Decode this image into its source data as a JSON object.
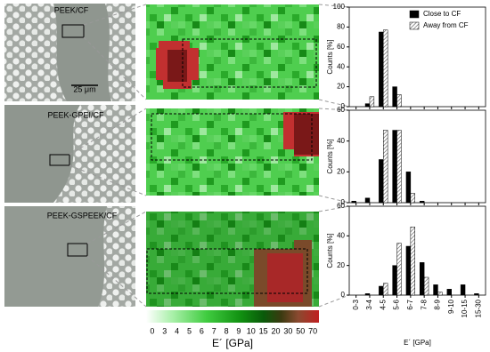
{
  "micrographs": [
    {
      "label": "PEEK/CF"
    },
    {
      "label": "PEEK-GPEI/CF"
    },
    {
      "label": "PEEK-GSPEEK/CF"
    }
  ],
  "scale_bar": "25 μm",
  "colorbar": {
    "ticks": [
      "0",
      "3",
      "4",
      "5",
      "6",
      "7",
      "8",
      "9",
      "10",
      "15",
      "20",
      "30",
      "50",
      "70"
    ],
    "label": "E´ [GPa]"
  },
  "chart_data": [
    {
      "type": "bar",
      "ylabel": "Counts [%]",
      "legend": "upper right",
      "categories": [
        null,
        null,
        null,
        null,
        null,
        null,
        null,
        null,
        null,
        null
      ],
      "series": [
        {
          "name": "Close to CF",
          "color": "#000000",
          "values": [
            0,
            3,
            75,
            20,
            0,
            0,
            0,
            0,
            0,
            0
          ]
        },
        {
          "name": "Away from CF",
          "color": "#ffffff",
          "hatch": true,
          "values": [
            0,
            10,
            77,
            12,
            0,
            0,
            0,
            0,
            0,
            0
          ]
        }
      ],
      "ylim": [
        0,
        100
      ],
      "yticks": [
        0,
        20,
        40,
        60,
        80,
        100
      ]
    },
    {
      "type": "bar",
      "ylabel": "Counts [%]",
      "categories": [
        null,
        null,
        null,
        null,
        null,
        null,
        null,
        null,
        null,
        null
      ],
      "series": [
        {
          "color": "#000000",
          "values": [
            1,
            3,
            28,
            47,
            20,
            1,
            0,
            0,
            0,
            0
          ]
        },
        {
          "color": "#ffffff",
          "hatch": true,
          "values": [
            0,
            0,
            47,
            47,
            6,
            0,
            0,
            0,
            0,
            0
          ]
        }
      ],
      "ylim": [
        0,
        60
      ],
      "yticks": [
        0,
        20,
        40,
        60
      ]
    },
    {
      "type": "bar",
      "ylabel": "Counts [%]",
      "xlabel": "E´ [GPa]",
      "categories": [
        "0-3",
        "3-4",
        "4-5",
        "5-6",
        "6-7",
        "7-8",
        "8-9",
        "9-10",
        "10-15",
        "15-30"
      ],
      "series": [
        {
          "color": "#000000",
          "values": [
            0,
            1,
            6,
            20,
            33,
            22,
            7,
            4,
            7,
            1
          ]
        },
        {
          "color": "#ffffff",
          "hatch": true,
          "values": [
            0,
            0,
            8,
            35,
            46,
            12,
            2,
            0,
            0,
            0
          ]
        }
      ],
      "ylim": [
        0,
        60
      ],
      "yticks": [
        0,
        20,
        40,
        60
      ]
    }
  ]
}
